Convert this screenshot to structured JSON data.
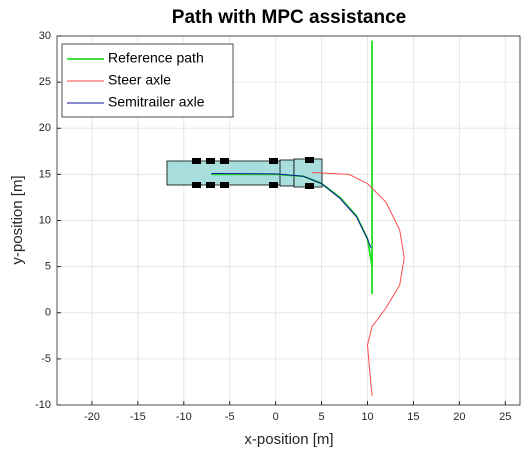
{
  "chart_data": {
    "type": "line",
    "title": "Path with MPC assistance",
    "x_label": "x-position [m]",
    "y_label": "y-position [m]",
    "xlim": [
      -23.8,
      26.6
    ],
    "ylim": [
      -10,
      30
    ],
    "xticks": [
      -20,
      -15,
      -10,
      -5,
      0,
      5,
      10,
      15,
      20,
      25
    ],
    "yticks": [
      -10,
      -5,
      0,
      5,
      10,
      15,
      20,
      25,
      30
    ],
    "grid": true,
    "legend": "upper left",
    "series": [
      {
        "name": "Reference path",
        "color": "#22dd22",
        "x": [
          -7,
          0,
          3,
          5,
          7,
          8.8,
          10,
          10.5,
          10.5,
          10.5,
          10.5
        ],
        "values": [
          15,
          15,
          14.8,
          14,
          12.5,
          10.5,
          8,
          5,
          2,
          10,
          29.5
        ]
      },
      {
        "name": "Steer axle",
        "color": "#ff4a4a",
        "x": [
          4,
          8,
          10,
          12,
          13.5,
          14,
          13.5,
          12,
          10.5,
          10,
          10.3,
          10.5
        ],
        "values": [
          15.2,
          15,
          14,
          12,
          9,
          6,
          3,
          0.5,
          -1.5,
          -3.5,
          -7,
          -9
        ]
      },
      {
        "name": "Semitrailer axle",
        "color": "#1010a0",
        "x": [
          -7,
          0,
          3,
          5,
          7,
          8.8,
          10,
          10.4
        ],
        "values": [
          15.1,
          15.05,
          14.8,
          14,
          12.4,
          10.4,
          8,
          7
        ]
      }
    ]
  }
}
